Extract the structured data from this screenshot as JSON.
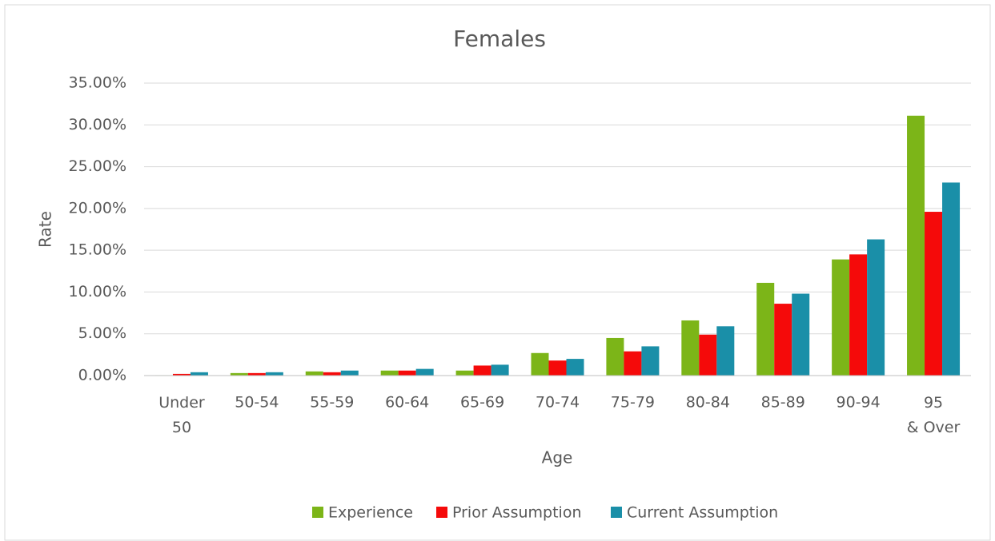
{
  "chart_data": {
    "type": "bar",
    "title": "Females",
    "x_label": "Age",
    "y_label": "Rate",
    "categories": [
      "Under 50",
      "50-54",
      "55-59",
      "60-64",
      "65-69",
      "70-74",
      "75-79",
      "80-84",
      "85-89",
      "90-94",
      "95 & Over"
    ],
    "series": [
      {
        "name": "Experience",
        "color": "#7cb518",
        "values": [
          0.05,
          0.3,
          0.5,
          0.6,
          0.6,
          2.7,
          4.5,
          6.6,
          11.1,
          13.9,
          31.1
        ]
      },
      {
        "name": "Prior Assumption",
        "color": "#f50a0a",
        "values": [
          0.2,
          0.3,
          0.4,
          0.6,
          1.2,
          1.8,
          2.9,
          4.9,
          8.6,
          14.5,
          19.6
        ]
      },
      {
        "name": "Current Assumption",
        "color": "#1a8fa8",
        "values": [
          0.4,
          0.4,
          0.6,
          0.8,
          1.3,
          2.0,
          3.5,
          5.9,
          9.8,
          16.3,
          23.1
        ]
      }
    ],
    "ylim": [
      0,
      35
    ],
    "yticks": [
      {
        "value": 0,
        "label": "0.00%"
      },
      {
        "value": 5,
        "label": "5.00%"
      },
      {
        "value": 10,
        "label": "10.00%"
      },
      {
        "value": 15,
        "label": "15.00%"
      },
      {
        "value": 20,
        "label": "20.00%"
      },
      {
        "value": 25,
        "label": "25.00%"
      },
      {
        "value": 30,
        "label": "30.00%"
      },
      {
        "value": 35,
        "label": "35.00%"
      }
    ],
    "grid": true,
    "legend": "bottom"
  }
}
